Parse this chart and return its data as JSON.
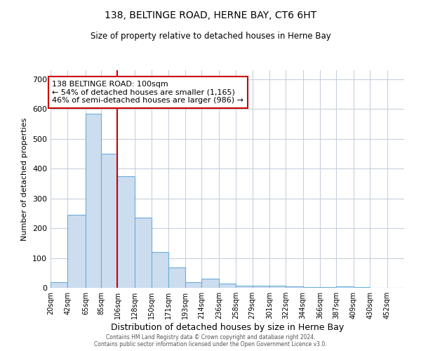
{
  "title": "138, BELTINGE ROAD, HERNE BAY, CT6 6HT",
  "subtitle": "Size of property relative to detached houses in Herne Bay",
  "xlabel": "Distribution of detached houses by size in Herne Bay",
  "ylabel": "Number of detached properties",
  "bar_color": "#ccddf0",
  "bar_edge_color": "#6aaed6",
  "grid_color": "#c8d0dc",
  "marker_line_color": "#cc0000",
  "annotation_line1": "138 BELTINGE ROAD: 100sqm",
  "annotation_line2": "← 54% of detached houses are smaller (1,165)",
  "annotation_line3": "46% of semi-detached houses are larger (986) →",
  "annotation_box_edge": "#cc0000",
  "footer_line1": "Contains HM Land Registry data © Crown copyright and database right 2024.",
  "footer_line2": "Contains public sector information licensed under the Open Government Licence v3.0.",
  "bin_edges": [
    20,
    42,
    65,
    85,
    106,
    128,
    150,
    171,
    193,
    214,
    236,
    258,
    279,
    301,
    322,
    344,
    366,
    387,
    409,
    430,
    452,
    474
  ],
  "values": [
    18,
    245,
    585,
    450,
    375,
    235,
    120,
    68,
    20,
    30,
    13,
    8,
    6,
    7,
    5,
    3,
    2,
    4,
    2,
    1,
    0
  ],
  "tick_labels": [
    "20sqm",
    "42sqm",
    "65sqm",
    "85sqm",
    "106sqm",
    "128sqm",
    "150sqm",
    "171sqm",
    "193sqm",
    "214sqm",
    "236sqm",
    "258sqm",
    "279sqm",
    "301sqm",
    "322sqm",
    "344sqm",
    "366sqm",
    "387sqm",
    "409sqm",
    "430sqm",
    "452sqm"
  ],
  "red_line_bin_index": 4,
  "ylim": [
    0,
    730
  ],
  "yticks": [
    0,
    100,
    200,
    300,
    400,
    500,
    600,
    700
  ]
}
